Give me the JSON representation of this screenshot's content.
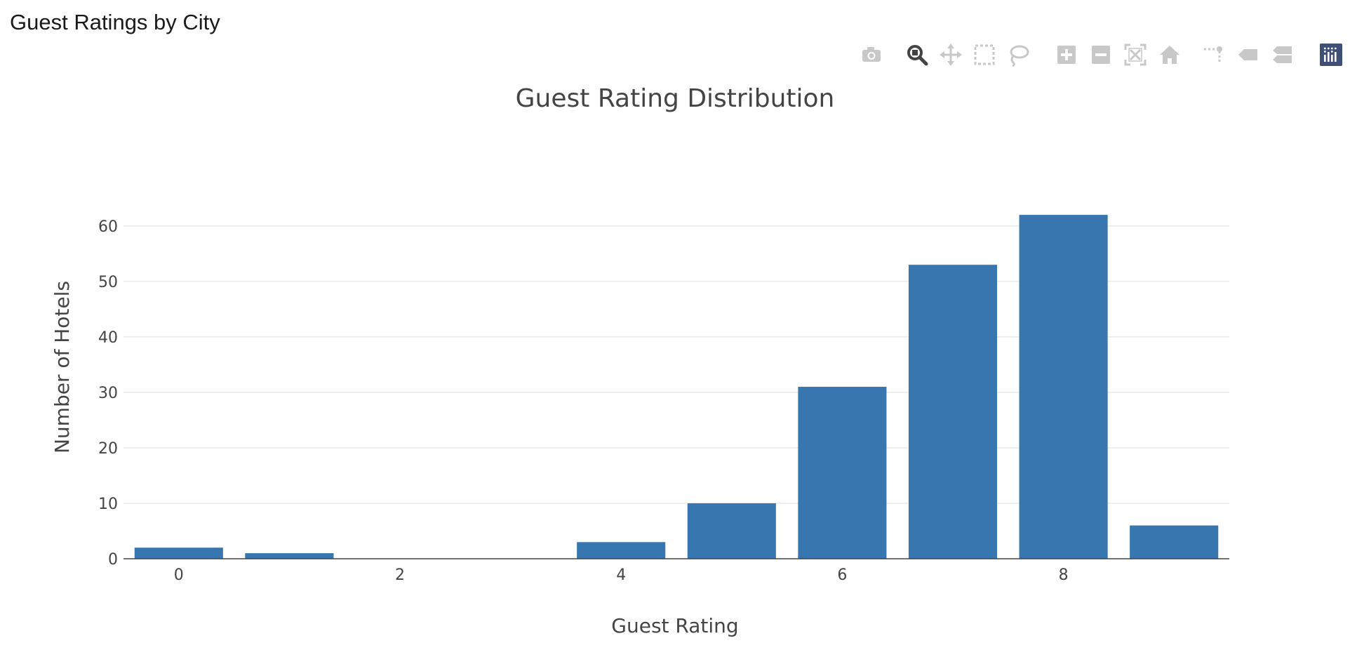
{
  "page": {
    "title": "Guest Ratings by City"
  },
  "modebar": {
    "buttons": [
      {
        "name": "camera-icon",
        "active": false
      },
      {
        "name": "zoom-icon",
        "active": true
      },
      {
        "name": "pan-icon",
        "active": false
      },
      {
        "name": "box-select-icon",
        "active": false
      },
      {
        "name": "lasso-select-icon",
        "active": false
      },
      {
        "name": "zoom-in-icon",
        "active": false
      },
      {
        "name": "zoom-out-icon",
        "active": false
      },
      {
        "name": "autoscale-icon",
        "active": false
      },
      {
        "name": "reset-axes-icon",
        "active": false
      },
      {
        "name": "toggle-spike-lines-icon",
        "active": false
      },
      {
        "name": "hover-closest-icon",
        "active": false
      },
      {
        "name": "hover-compare-icon",
        "active": false
      },
      {
        "name": "plotly-logo-icon",
        "active": false
      }
    ],
    "icon_color": "#c8c8c8",
    "active_color": "#444444",
    "logo_color": "#3f4f75"
  },
  "chart_data": {
    "type": "bar",
    "title": "Guest Rating Distribution",
    "xlabel": "Guest Rating",
    "ylabel": "Number of Hotels",
    "x": [
      0,
      1,
      2,
      3,
      4,
      5,
      6,
      7,
      8,
      9
    ],
    "values": [
      2,
      1,
      0,
      0,
      3,
      10,
      31,
      53,
      62,
      6
    ],
    "xlim": [
      -0.5,
      9.5
    ],
    "ylim": [
      0,
      65.3
    ],
    "xticks": [
      0,
      2,
      4,
      6,
      8
    ],
    "yticks": [
      0,
      10,
      20,
      30,
      40,
      50,
      60
    ],
    "bar_color": "#3776ae",
    "grid": true,
    "grid_color": "#e9e9e9",
    "axis_color": "#444444"
  }
}
